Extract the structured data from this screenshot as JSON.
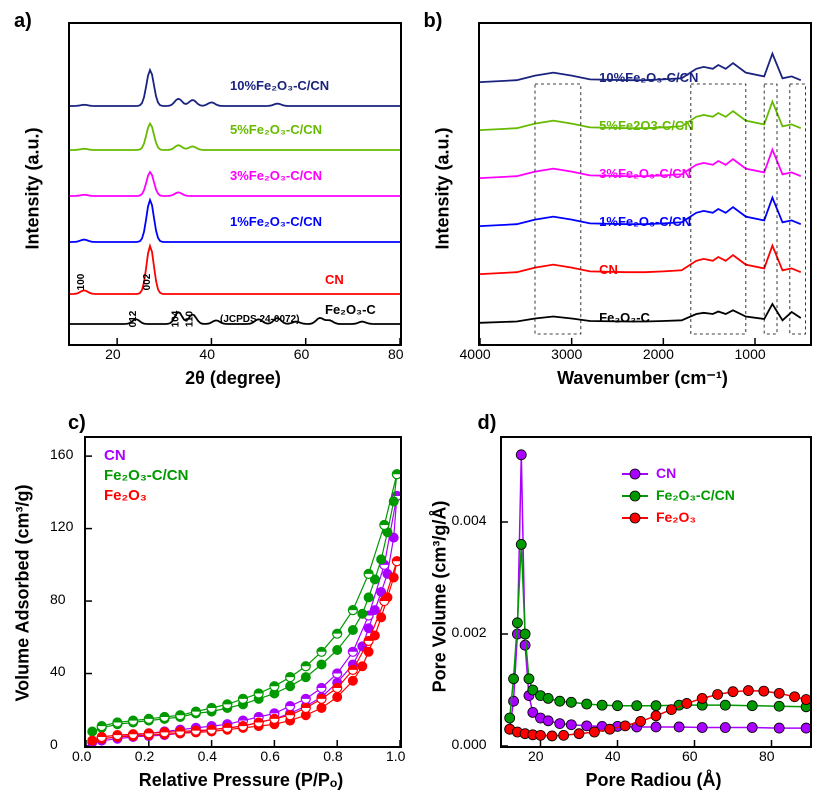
{
  "panelA": {
    "label": "a)",
    "type": "line-stacked",
    "xlabel": "2θ (degree)",
    "ylabel": "Intensity (a.u.)",
    "xlim": [
      10,
      80
    ],
    "xtick_step": 20,
    "xtick_labels": [
      "20",
      "40",
      "60",
      "80"
    ],
    "background": "#ffffff",
    "frame_color": "#000000",
    "series": [
      {
        "name": "10%Fe₂O₃-C/CN",
        "color": "#1a237e",
        "offset": 5,
        "peaks": [
          [
            13,
            0.1
          ],
          [
            27,
            3.0
          ],
          [
            33,
            0.6
          ],
          [
            36,
            0.5
          ],
          [
            40,
            0.3
          ],
          [
            54,
            0.2
          ]
        ]
      },
      {
        "name": "5%Fe₂O₃-C/CN",
        "color": "#66bb00",
        "offset": 4,
        "peaks": [
          [
            13,
            0.1
          ],
          [
            27,
            2.2
          ],
          [
            33,
            0.4
          ],
          [
            36,
            0.3
          ]
        ]
      },
      {
        "name": "3%Fe₂O₃-C/CN",
        "color": "#ff00ff",
        "offset": 3,
        "peaks": [
          [
            13,
            0.1
          ],
          [
            27,
            2.0
          ],
          [
            33,
            0.3
          ]
        ]
      },
      {
        "name": "1%Fe₂O₃-C/CN",
        "color": "#0000ff",
        "offset": 2,
        "peaks": [
          [
            13,
            0.2
          ],
          [
            27,
            3.5
          ]
        ]
      },
      {
        "name": "CN",
        "color": "#ff0000",
        "offset": 1,
        "peaks": [
          [
            13,
            0.3
          ],
          [
            27,
            4.0
          ]
        ]
      },
      {
        "name": "Fe₂O₃-C",
        "color": "#000000",
        "offset": 0,
        "peaks": [
          [
            24,
            0.4
          ],
          [
            33,
            1.0
          ],
          [
            36,
            0.8
          ],
          [
            41,
            0.3
          ],
          [
            50,
            0.4
          ],
          [
            54,
            0.5
          ],
          [
            58,
            0.2
          ],
          [
            63,
            0.5
          ],
          [
            65,
            0.3
          ],
          [
            72,
            0.2
          ]
        ]
      }
    ],
    "peak_labels": [
      {
        "text": "100",
        "x": 13,
        "rot": 90
      },
      {
        "text": "002",
        "x": 27,
        "rot": 90
      },
      {
        "text": "012",
        "x": 24,
        "rot": 90
      },
      {
        "text": "104",
        "x": 33,
        "rot": 90
      },
      {
        "text": "110",
        "x": 36,
        "rot": 90
      }
    ],
    "jcpds": "(JCPDS 24-0072)",
    "linewidth": 1.8
  },
  "panelB": {
    "label": "b)",
    "type": "line-stacked",
    "xlabel": "Wavenumber (cm⁻¹)",
    "ylabel": "Intensity (a.u.)",
    "xlim": [
      4000,
      400
    ],
    "xtick_labels": [
      "4000",
      "3000",
      "2000",
      "1000"
    ],
    "background": "#ffffff",
    "series": [
      {
        "name": "10%Fe₂O₃-C/CN",
        "color": "#1a237e",
        "offset": 5
      },
      {
        "name": "5%Fe2O3-C/CN",
        "color": "#66bb00",
        "offset": 4
      },
      {
        "name": "3%Fe₂O₃-C/CN",
        "color": "#ff00ff",
        "offset": 3
      },
      {
        "name": "1%Fe₂O₃-C/CN",
        "color": "#0000ff",
        "offset": 2
      },
      {
        "name": "CN",
        "color": "#ff0000",
        "offset": 1
      },
      {
        "name": "Fe₂O₃-C",
        "color": "#000000",
        "offset": 0
      }
    ],
    "ftir_shape": [
      [
        4000,
        0.95
      ],
      [
        3600,
        0.9
      ],
      [
        3400,
        0.78
      ],
      [
        3200,
        0.7
      ],
      [
        3000,
        0.78
      ],
      [
        2800,
        0.88
      ],
      [
        2400,
        0.9
      ],
      [
        2200,
        0.9
      ],
      [
        2000,
        0.88
      ],
      [
        1800,
        0.85
      ],
      [
        1640,
        0.6
      ],
      [
        1560,
        0.55
      ],
      [
        1460,
        0.6
      ],
      [
        1400,
        0.5
      ],
      [
        1320,
        0.6
      ],
      [
        1240,
        0.45
      ],
      [
        1100,
        0.7
      ],
      [
        900,
        0.8
      ],
      [
        810,
        0.2
      ],
      [
        700,
        0.85
      ],
      [
        600,
        0.8
      ],
      [
        500,
        0.9
      ]
    ],
    "dashed_boxes": true,
    "linewidth": 1.8
  },
  "panelC": {
    "label": "c)",
    "type": "scatter-line",
    "xlabel": "Relative Pressure (P/Pₒ)",
    "ylabel": "Volume Adsorbed (cm³/g)",
    "xlim": [
      0,
      1.0
    ],
    "ylim": [
      0,
      170
    ],
    "xtick_labels": [
      "0.0",
      "0.2",
      "0.4",
      "0.6",
      "0.8",
      "1.0"
    ],
    "ytick_labels": [
      "0",
      "40",
      "80",
      "120",
      "160"
    ],
    "background": "#ffffff",
    "series": [
      {
        "name": "CN",
        "color": "#aa00ff",
        "points_ads": [
          [
            0.02,
            2
          ],
          [
            0.05,
            3
          ],
          [
            0.1,
            4
          ],
          [
            0.15,
            5
          ],
          [
            0.2,
            5.5
          ],
          [
            0.25,
            6
          ],
          [
            0.3,
            7
          ],
          [
            0.35,
            8
          ],
          [
            0.4,
            9
          ],
          [
            0.45,
            10
          ],
          [
            0.5,
            11
          ],
          [
            0.55,
            13
          ],
          [
            0.6,
            15
          ],
          [
            0.65,
            18
          ],
          [
            0.7,
            22
          ],
          [
            0.75,
            27
          ],
          [
            0.8,
            35
          ],
          [
            0.85,
            45
          ],
          [
            0.88,
            55
          ],
          [
            0.9,
            65
          ],
          [
            0.92,
            75
          ],
          [
            0.94,
            85
          ],
          [
            0.96,
            95
          ],
          [
            0.98,
            115
          ],
          [
            0.99,
            138
          ]
        ],
        "points_des": [
          [
            0.99,
            138
          ],
          [
            0.95,
            100
          ],
          [
            0.9,
            72
          ],
          [
            0.85,
            52
          ],
          [
            0.8,
            40
          ],
          [
            0.75,
            32
          ],
          [
            0.7,
            26
          ],
          [
            0.65,
            22
          ],
          [
            0.6,
            18
          ],
          [
            0.55,
            16
          ],
          [
            0.5,
            14
          ],
          [
            0.45,
            12
          ],
          [
            0.4,
            11
          ],
          [
            0.35,
            10
          ],
          [
            0.3,
            9
          ],
          [
            0.25,
            8
          ],
          [
            0.2,
            7
          ],
          [
            0.15,
            6
          ],
          [
            0.1,
            5
          ],
          [
            0.05,
            4
          ]
        ]
      },
      {
        "name": "Fe₂O₃-C/CN",
        "color": "#009900",
        "points_ads": [
          [
            0.02,
            8
          ],
          [
            0.05,
            10
          ],
          [
            0.1,
            12
          ],
          [
            0.15,
            13
          ],
          [
            0.2,
            14
          ],
          [
            0.25,
            15
          ],
          [
            0.3,
            16
          ],
          [
            0.35,
            18
          ],
          [
            0.4,
            19
          ],
          [
            0.45,
            21
          ],
          [
            0.5,
            23
          ],
          [
            0.55,
            26
          ],
          [
            0.6,
            29
          ],
          [
            0.65,
            33
          ],
          [
            0.7,
            38
          ],
          [
            0.75,
            45
          ],
          [
            0.8,
            53
          ],
          [
            0.85,
            64
          ],
          [
            0.88,
            73
          ],
          [
            0.9,
            82
          ],
          [
            0.92,
            92
          ],
          [
            0.94,
            103
          ],
          [
            0.96,
            118
          ],
          [
            0.98,
            135
          ],
          [
            0.99,
            150
          ]
        ],
        "points_des": [
          [
            0.99,
            150
          ],
          [
            0.95,
            122
          ],
          [
            0.9,
            95
          ],
          [
            0.85,
            75
          ],
          [
            0.8,
            62
          ],
          [
            0.75,
            52
          ],
          [
            0.7,
            44
          ],
          [
            0.65,
            38
          ],
          [
            0.6,
            33
          ],
          [
            0.55,
            29
          ],
          [
            0.5,
            26
          ],
          [
            0.45,
            23
          ],
          [
            0.4,
            21
          ],
          [
            0.35,
            19
          ],
          [
            0.3,
            17
          ],
          [
            0.25,
            16
          ],
          [
            0.2,
            15
          ],
          [
            0.15,
            14
          ],
          [
            0.1,
            13
          ],
          [
            0.05,
            11
          ]
        ]
      },
      {
        "name": "Fe₂O₃",
        "color": "#ff0000",
        "points_ads": [
          [
            0.02,
            3
          ],
          [
            0.05,
            4
          ],
          [
            0.1,
            5
          ],
          [
            0.15,
            5.5
          ],
          [
            0.2,
            6
          ],
          [
            0.25,
            6.5
          ],
          [
            0.3,
            7
          ],
          [
            0.35,
            7.5
          ],
          [
            0.4,
            8
          ],
          [
            0.45,
            9
          ],
          [
            0.5,
            10
          ],
          [
            0.55,
            11
          ],
          [
            0.6,
            12
          ],
          [
            0.65,
            14
          ],
          [
            0.7,
            17
          ],
          [
            0.75,
            21
          ],
          [
            0.8,
            27
          ],
          [
            0.85,
            36
          ],
          [
            0.88,
            44
          ],
          [
            0.9,
            52
          ],
          [
            0.92,
            61
          ],
          [
            0.94,
            71
          ],
          [
            0.96,
            82
          ],
          [
            0.98,
            93
          ],
          [
            0.99,
            102
          ]
        ],
        "points_des": [
          [
            0.99,
            102
          ],
          [
            0.95,
            80
          ],
          [
            0.9,
            58
          ],
          [
            0.85,
            42
          ],
          [
            0.8,
            32
          ],
          [
            0.75,
            26
          ],
          [
            0.7,
            21
          ],
          [
            0.65,
            17
          ],
          [
            0.6,
            15
          ],
          [
            0.55,
            13
          ],
          [
            0.5,
            11
          ],
          [
            0.45,
            10
          ],
          [
            0.4,
            9
          ],
          [
            0.35,
            8.5
          ],
          [
            0.3,
            8
          ],
          [
            0.25,
            7.5
          ],
          [
            0.2,
            7
          ],
          [
            0.15,
            6.5
          ],
          [
            0.1,
            6
          ],
          [
            0.05,
            5
          ]
        ]
      }
    ],
    "marker_size": 4.5,
    "linewidth": 1.2
  },
  "panelD": {
    "label": "d)",
    "type": "scatter-line",
    "xlabel": "Pore Radiou (Å)",
    "ylabel": "Pore Volume (cm³/g/Å)",
    "xlim": [
      10,
      90
    ],
    "ylim": [
      0,
      0.0055
    ],
    "xtick_labels": [
      "20",
      "40",
      "60",
      "80"
    ],
    "ytick_labels": [
      "0.000",
      "0.002",
      "0.004"
    ],
    "background": "#ffffff",
    "series": [
      {
        "name": "CN",
        "color": "#aa00ff",
        "points": [
          [
            12,
            0.0003
          ],
          [
            13,
            0.0008
          ],
          [
            14,
            0.002
          ],
          [
            15,
            0.0052
          ],
          [
            16,
            0.0018
          ],
          [
            17,
            0.0009
          ],
          [
            18,
            0.0006
          ],
          [
            20,
            0.0005
          ],
          [
            22,
            0.00045
          ],
          [
            25,
            0.0004
          ],
          [
            28,
            0.00038
          ],
          [
            32,
            0.00036
          ],
          [
            36,
            0.00035
          ],
          [
            40,
            0.00035
          ],
          [
            45,
            0.00034
          ],
          [
            50,
            0.00034
          ],
          [
            56,
            0.00034
          ],
          [
            62,
            0.00033
          ],
          [
            68,
            0.00033
          ],
          [
            75,
            0.00033
          ],
          [
            82,
            0.00032
          ],
          [
            89,
            0.00032
          ]
        ]
      },
      {
        "name": "Fe₂O₃-C/CN",
        "color": "#009900",
        "points": [
          [
            12,
            0.0005
          ],
          [
            13,
            0.0012
          ],
          [
            14,
            0.0022
          ],
          [
            15,
            0.0036
          ],
          [
            16,
            0.002
          ],
          [
            17,
            0.0012
          ],
          [
            18,
            0.001
          ],
          [
            20,
            0.0009
          ],
          [
            22,
            0.00085
          ],
          [
            25,
            0.0008
          ],
          [
            28,
            0.00078
          ],
          [
            32,
            0.00075
          ],
          [
            36,
            0.00073
          ],
          [
            40,
            0.00072
          ],
          [
            45,
            0.00072
          ],
          [
            50,
            0.00072
          ],
          [
            56,
            0.00073
          ],
          [
            62,
            0.00073
          ],
          [
            68,
            0.00073
          ],
          [
            75,
            0.00072
          ],
          [
            82,
            0.00071
          ],
          [
            89,
            0.0007
          ]
        ]
      },
      {
        "name": "Fe₂O₃",
        "color": "#ff0000",
        "points": [
          [
            12,
            0.0003
          ],
          [
            14,
            0.00025
          ],
          [
            16,
            0.00022
          ],
          [
            18,
            0.0002
          ],
          [
            20,
            0.00019
          ],
          [
            23,
            0.00018
          ],
          [
            26,
            0.00019
          ],
          [
            30,
            0.00022
          ],
          [
            34,
            0.00025
          ],
          [
            38,
            0.0003
          ],
          [
            42,
            0.00036
          ],
          [
            46,
            0.00044
          ],
          [
            50,
            0.00054
          ],
          [
            54,
            0.00065
          ],
          [
            58,
            0.00076
          ],
          [
            62,
            0.00085
          ],
          [
            66,
            0.00092
          ],
          [
            70,
            0.00097
          ],
          [
            74,
            0.00099
          ],
          [
            78,
            0.00098
          ],
          [
            82,
            0.00094
          ],
          [
            86,
            0.00088
          ],
          [
            89,
            0.00083
          ]
        ]
      }
    ],
    "marker_size": 5,
    "linewidth": 1.5
  }
}
